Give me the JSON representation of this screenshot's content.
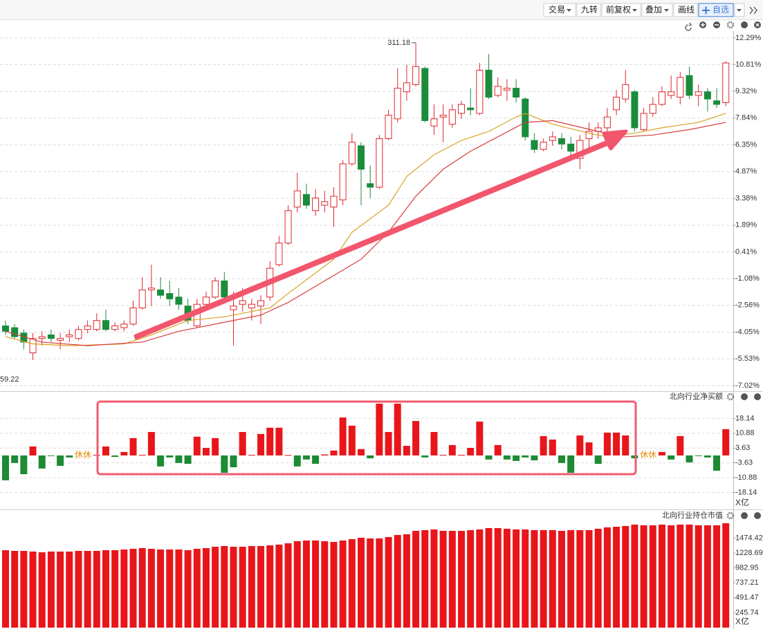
{
  "toolbar": {
    "buttons": [
      "交易",
      "九转",
      "前复权",
      "叠加",
      "画线",
      "自选"
    ]
  },
  "chart_data": [
    {
      "type": "candlestick",
      "ylim": [
        -7.29,
        12.67
      ],
      "yticks": [
        {
          "value": 12.29,
          "label": "12.29%"
        },
        {
          "value": 10.81,
          "label": "10.81%"
        },
        {
          "value": 9.32,
          "label": "9.32%"
        },
        {
          "value": 7.84,
          "label": "7.84%"
        },
        {
          "value": 6.35,
          "label": "6.35%"
        },
        {
          "value": 4.87,
          "label": "4.87%"
        },
        {
          "value": 3.38,
          "label": "3.38%"
        },
        {
          "value": 1.89,
          "label": "1.89%"
        },
        {
          "value": 0.41,
          "label": "0.41%"
        },
        {
          "value": -1.08,
          "label": "-1.08%"
        },
        {
          "value": -2.56,
          "label": "-2.56%"
        },
        {
          "value": -4.05,
          "label": "-4.05%"
        },
        {
          "value": -5.53,
          "label": "-5.53%"
        },
        {
          "value": -7.02,
          "label": "-7.02%"
        }
      ],
      "grid": true,
      "up_color": "#e0262a",
      "down_color": "#1a8c3c",
      "max_label": "311.18",
      "max_index": 45,
      "min_label": "59.22",
      "open": [
        -3.7,
        -3.8,
        -4.1,
        -5.2,
        -4.4,
        -4.2,
        -4.5,
        -4.3,
        -4.4,
        -3.9,
        -3.9,
        -3.4,
        -3.9,
        -3.8,
        -3.6,
        -2.7,
        -1.7,
        -1.7,
        -1.9,
        -2.1,
        -2.6,
        -3.7,
        -2.5,
        -2.1,
        -1.2,
        -2.8,
        -2.5,
        -2.7,
        -2.6,
        -2.1,
        -0.3,
        0.9,
        2.9,
        3.6,
        2.7,
        3.0,
        2.9,
        3.3,
        5.3,
        6.3,
        4.2,
        4.0,
        6.7,
        7.8,
        9.3,
        9.7,
        10.6,
        7.4,
        7.9,
        7.5,
        8.1,
        8.4,
        8.1,
        10.5,
        9.1,
        9.4,
        9.5,
        8.9,
        6.6,
        6.1,
        6.6,
        6.7,
        6.4,
        5.6,
        6.7,
        7.1,
        7.3,
        8.3,
        8.9,
        9.3,
        7.2,
        8.1,
        8.6,
        9.1,
        9.0,
        10.2,
        9.1,
        9.3,
        8.8,
        8.7
      ],
      "high": [
        -3.4,
        -3.6,
        -3.9,
        -4.1,
        -4.0,
        -3.9,
        -4.1,
        -3.9,
        -3.7,
        -3.4,
        -3.0,
        -2.8,
        -3.5,
        -3.4,
        -2.3,
        -1.0,
        -0.3,
        -1.0,
        -1.2,
        -1.6,
        -2.2,
        -2.2,
        -1.8,
        -1.0,
        -0.7,
        -1.8,
        -1.6,
        -2.2,
        -2.0,
        -0.1,
        1.3,
        3.0,
        4.8,
        4.2,
        3.9,
        3.8,
        4.0,
        5.5,
        7.0,
        6.5,
        5.2,
        6.9,
        8.3,
        10.6,
        10.8,
        12.02,
        10.7,
        8.6,
        8.6,
        8.6,
        8.8,
        9.5,
        10.9,
        11.4,
        10.1,
        10.0,
        10.0,
        9.0,
        7.0,
        6.7,
        7.1,
        7.0,
        6.8,
        6.9,
        7.6,
        7.6,
        8.4,
        9.4,
        10.5,
        9.4,
        8.4,
        9.0,
        9.6,
        10.2,
        10.4,
        10.7,
        9.7,
        9.5,
        9.5,
        11.0
      ],
      "low": [
        -4.2,
        -4.4,
        -5.0,
        -5.6,
        -4.8,
        -4.6,
        -5.0,
        -4.6,
        -4.5,
        -4.1,
        -4.0,
        -4.0,
        -4.0,
        -4.0,
        -3.7,
        -2.8,
        -2.6,
        -2.2,
        -2.6,
        -2.8,
        -3.6,
        -3.8,
        -2.6,
        -2.2,
        -2.3,
        -4.8,
        -2.9,
        -3.4,
        -3.6,
        -2.3,
        -0.4,
        0.8,
        2.6,
        2.8,
        2.4,
        2.6,
        1.8,
        3.0,
        5.2,
        3.0,
        3.4,
        3.9,
        6.6,
        7.6,
        8.8,
        9.6,
        7.6,
        6.9,
        6.5,
        7.3,
        7.8,
        8.0,
        8.0,
        8.9,
        9.0,
        8.8,
        8.7,
        6.6,
        5.9,
        6.0,
        6.3,
        6.1,
        5.5,
        5.0,
        6.0,
        6.7,
        7.0,
        8.0,
        8.7,
        7.1,
        7.1,
        7.9,
        8.5,
        8.9,
        8.6,
        8.9,
        8.5,
        8.2,
        8.4,
        8.5
      ],
      "close": [
        -4.0,
        -4.3,
        -4.6,
        -4.4,
        -4.3,
        -4.4,
        -4.4,
        -4.2,
        -3.9,
        -3.7,
        -3.4,
        -3.9,
        -3.7,
        -3.6,
        -2.7,
        -1.7,
        -1.6,
        -2.0,
        -2.2,
        -2.5,
        -3.4,
        -2.5,
        -2.1,
        -1.2,
        -2.1,
        -2.6,
        -2.3,
        -2.5,
        -2.3,
        -0.5,
        0.9,
        2.7,
        3.8,
        3.0,
        3.4,
        3.2,
        3.5,
        5.3,
        6.5,
        5.0,
        4.0,
        6.7,
        8.0,
        9.5,
        9.8,
        10.7,
        7.7,
        7.8,
        8.0,
        8.3,
        8.6,
        8.3,
        10.5,
        9.0,
        9.6,
        9.5,
        9.0,
        6.8,
        6.1,
        6.5,
        6.8,
        6.4,
        6.0,
        6.6,
        7.1,
        7.3,
        7.9,
        9.0,
        9.7,
        7.3,
        8.1,
        8.6,
        9.3,
        9.3,
        10.1,
        9.1,
        9.3,
        8.9,
        8.6,
        10.9
      ],
      "ma_lines": [
        {
          "color": "#d9a020",
          "x": [
            0,
            3,
            7,
            13,
            16,
            20,
            24,
            29,
            31,
            36,
            38,
            42,
            44,
            47,
            50,
            53,
            56,
            57,
            60,
            64,
            66,
            69,
            72,
            76,
            79
          ],
          "values": [
            -4.3,
            -4.7,
            -4.8,
            -4.7,
            -4.2,
            -3.4,
            -3.2,
            -2.7,
            -1.9,
            0.0,
            1.5,
            3.0,
            4.6,
            5.8,
            6.6,
            7.1,
            7.9,
            8.1,
            7.5,
            7.0,
            6.8,
            7.0,
            7.3,
            7.6,
            8.1
          ]
        },
        {
          "color": "#d93a3a",
          "x": [
            0,
            4,
            9,
            15,
            19,
            24,
            28,
            31,
            35,
            39,
            42,
            45,
            48,
            51,
            54,
            57,
            60,
            65,
            68,
            71,
            75,
            79
          ],
          "values": [
            -4.0,
            -4.6,
            -4.8,
            -4.6,
            -4.0,
            -3.5,
            -3.1,
            -2.4,
            -1.2,
            0.0,
            1.5,
            3.5,
            5.0,
            6.0,
            6.8,
            7.6,
            7.7,
            7.1,
            6.8,
            6.9,
            7.2,
            7.6
          ]
        }
      ]
    },
    {
      "type": "bar",
      "title": "北向行业净买额",
      "unit": "X亿",
      "gap_label": "休休",
      "ylim": [
        -24.1,
        28.1
      ],
      "yticks": [
        18.14,
        10.88,
        3.63,
        -3.63,
        -10.88,
        -18.14
      ],
      "grid": true,
      "up_color": "#e8161b",
      "down_color": "#1d8a34",
      "values": [
        -12.2,
        -3.7,
        -9.2,
        4.4,
        -6.4,
        -0.3,
        -5.1,
        -1.0,
        null,
        null,
        0.3,
        4.4,
        -0.7,
        1.7,
        8.5,
        0.3,
        11.5,
        -5.4,
        -1.0,
        -3.7,
        -4.1,
        9.2,
        3.7,
        8.5,
        -8.5,
        -5.8,
        11.5,
        0.3,
        10.5,
        13.6,
        13.6,
        0.2,
        -5.4,
        -2.0,
        -4.1,
        0.5,
        2.4,
        18.6,
        14.6,
        3.1,
        -1.4,
        25.4,
        11.5,
        25.4,
        4.7,
        16.9,
        -1.0,
        11.5,
        0.3,
        5.1,
        0.3,
        3.7,
        16.6,
        -2.0,
        5.1,
        -2.0,
        -2.7,
        -1.0,
        -2.4,
        9.5,
        7.8,
        -3.7,
        -8.5,
        9.8,
        6.4,
        -4.1,
        11.2,
        11.2,
        9.8,
        -1.4,
        null,
        null,
        1.7,
        -2.0,
        9.5,
        -3.4,
        -0.3,
        -1.0,
        -7.5,
        12.9
      ]
    },
    {
      "type": "bar",
      "title": "北向行业持仓市值",
      "unit": "X亿",
      "ylim": [
        0,
        1866
      ],
      "yticks": [
        1474.42,
        1228.69,
        982.95,
        737.21,
        491.47,
        245.74
      ],
      "grid": false,
      "up_color": "#e8161b",
      "down_color": "#1d8a34",
      "values": [
        1275,
        1263,
        1263,
        1252,
        1240,
        1252,
        1252,
        1252,
        1263,
        1263,
        1263,
        1275,
        1275,
        1286,
        1297,
        1309,
        1297,
        1286,
        1286,
        1286,
        1275,
        1297,
        1309,
        1331,
        1343,
        1331,
        1331,
        1343,
        1343,
        1354,
        1366,
        1388,
        1423,
        1434,
        1434,
        1423,
        1411,
        1434,
        1457,
        1479,
        1468,
        1468,
        1491,
        1525,
        1536,
        1593,
        1605,
        1616,
        1593,
        1593,
        1593,
        1605,
        1616,
        1639,
        1639,
        1627,
        1616,
        1616,
        1605,
        1605,
        1605,
        1593,
        1605,
        1605,
        1605,
        1627,
        1650,
        1661,
        1673,
        1696,
        1684,
        1684,
        1696,
        1684,
        1696,
        1696,
        1684,
        1684,
        1684,
        1718
      ]
    }
  ]
}
